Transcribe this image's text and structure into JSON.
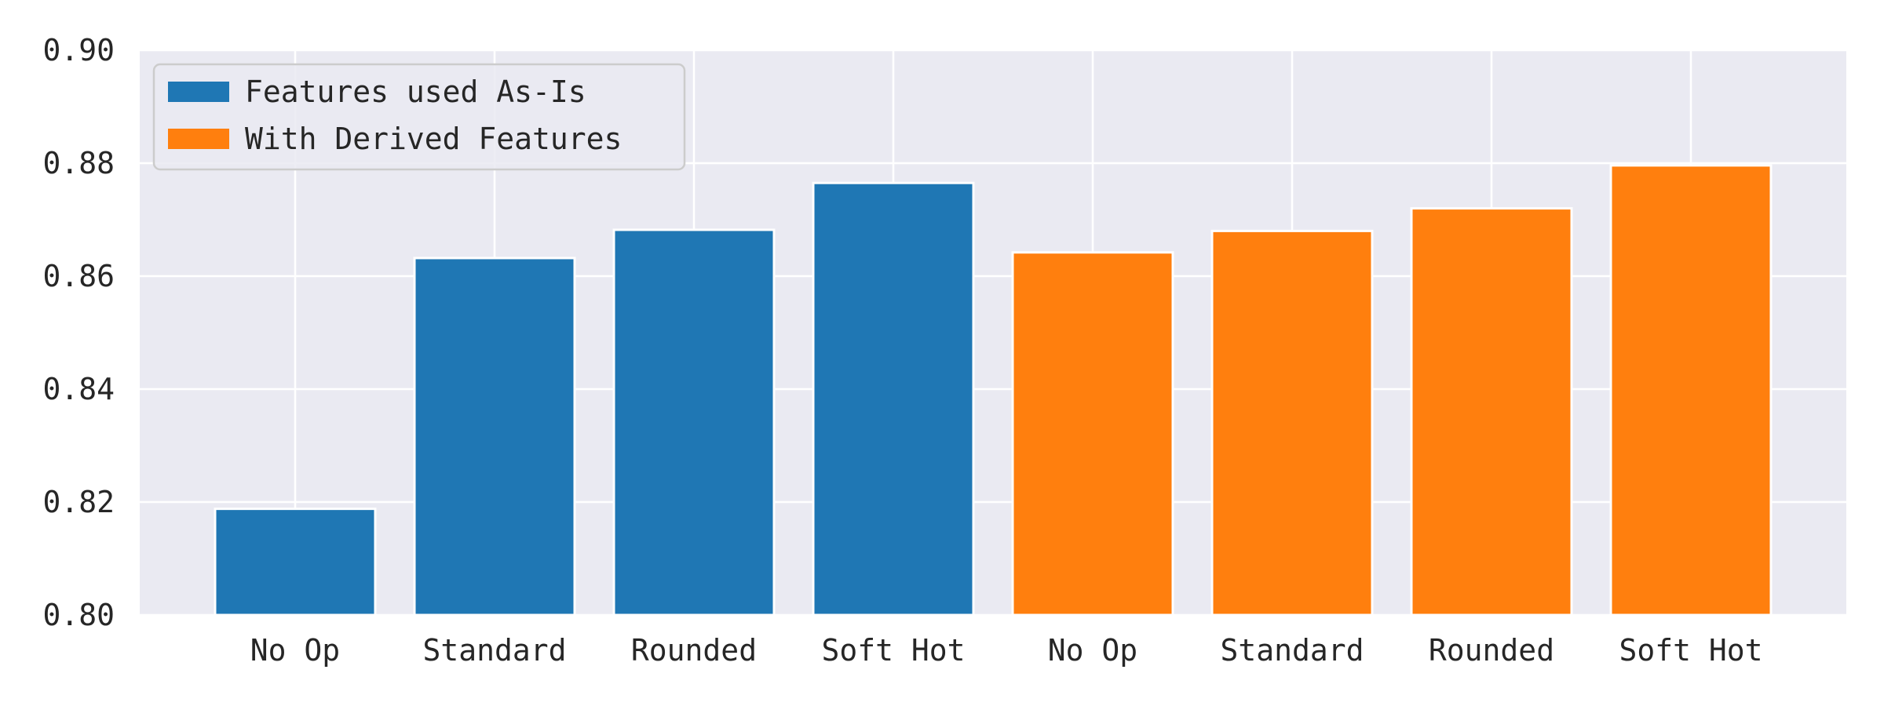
{
  "chart_data": {
    "type": "bar",
    "categories": [
      "No Op",
      "Standard",
      "Rounded",
      "Soft Hot",
      "No Op",
      "Standard",
      "Rounded",
      "Soft Hot"
    ],
    "series": [
      {
        "name": "Features used As-Is",
        "color": "#1f77b4",
        "values": [
          0.8188,
          0.8632,
          0.8682,
          0.8765,
          null,
          null,
          null,
          null
        ]
      },
      {
        "name": "With Derived Features",
        "color": "#ff7f0e",
        "values": [
          null,
          null,
          null,
          null,
          0.8642,
          0.868,
          0.872,
          0.8796
        ]
      }
    ],
    "title": "",
    "xlabel": "",
    "ylabel": "",
    "ylim": [
      0.8,
      0.9
    ],
    "yticks": [
      "0.80",
      "0.82",
      "0.84",
      "0.86",
      "0.88",
      "0.90"
    ],
    "grid": true,
    "legend_position": "top-left",
    "plot_background": "#eaeaf2",
    "grid_color": "#ffffff"
  }
}
